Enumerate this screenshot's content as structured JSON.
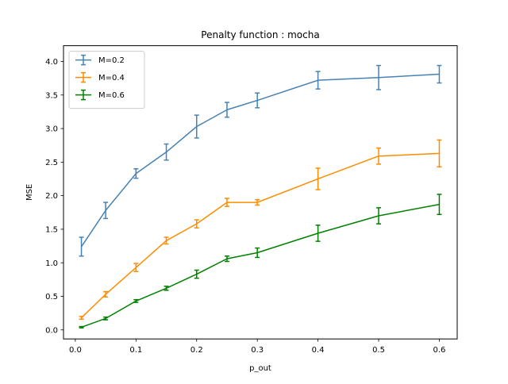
{
  "chart_data": {
    "type": "line",
    "title": "Penalty function : mocha",
    "xlabel": "p_out",
    "ylabel": "MSE",
    "xlim": [
      -0.0195,
      0.6295
    ],
    "ylim": [
      -0.135,
      4.235
    ],
    "x_ticks": [
      0.0,
      0.1,
      0.2,
      0.3,
      0.4,
      0.5,
      0.6
    ],
    "x_tick_labels": [
      "0.0",
      "0.1",
      "0.2",
      "0.3",
      "0.4",
      "0.5",
      "0.6"
    ],
    "y_ticks": [
      0.0,
      0.5,
      1.0,
      1.5,
      2.0,
      2.5,
      3.0,
      3.5,
      4.0
    ],
    "y_tick_labels": [
      "0.0",
      "0.5",
      "1.0",
      "1.5",
      "2.0",
      "2.5",
      "3.0",
      "3.5",
      "4.0"
    ],
    "grid": false,
    "legend_position": "top-left",
    "x": [
      0.01,
      0.05,
      0.1,
      0.15,
      0.2,
      0.25,
      0.3,
      0.4,
      0.5,
      0.6
    ],
    "series": [
      {
        "name": "M=0.2",
        "color": "#4682b4",
        "values": [
          1.24,
          1.78,
          2.33,
          2.65,
          3.03,
          3.28,
          3.42,
          3.72,
          3.76,
          3.81
        ],
        "errors": [
          0.14,
          0.12,
          0.07,
          0.12,
          0.17,
          0.11,
          0.11,
          0.13,
          0.18,
          0.13
        ]
      },
      {
        "name": "M=0.4",
        "color": "#ff8c00",
        "values": [
          0.18,
          0.53,
          0.93,
          1.33,
          1.58,
          1.9,
          1.9,
          2.25,
          2.59,
          2.63
        ],
        "errors": [
          0.02,
          0.04,
          0.06,
          0.05,
          0.06,
          0.06,
          0.04,
          0.16,
          0.12,
          0.2
        ]
      },
      {
        "name": "M=0.6",
        "color": "#008000",
        "values": [
          0.04,
          0.17,
          0.43,
          0.62,
          0.83,
          1.06,
          1.15,
          1.44,
          1.7,
          1.87
        ],
        "errors": [
          0.01,
          0.02,
          0.02,
          0.03,
          0.06,
          0.04,
          0.07,
          0.12,
          0.12,
          0.15
        ]
      }
    ]
  }
}
